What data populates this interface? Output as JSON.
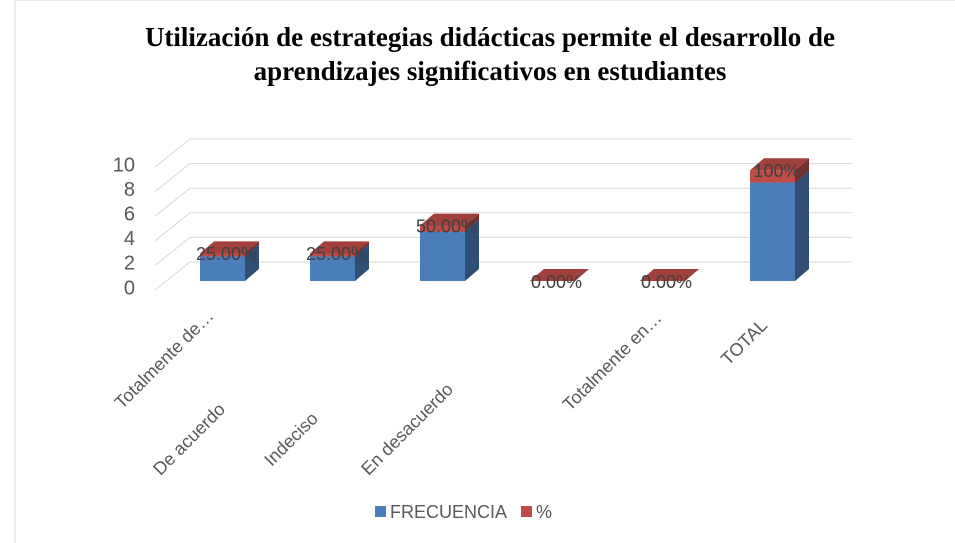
{
  "chart_data": {
    "type": "bar3d",
    "title": [
      "Utilización de estrategias didácticas permite el desarrollo de",
      "aprendizajes significativos en estudiantes"
    ],
    "categories": [
      "Totalmente de…",
      "De acuerdo",
      "Indeciso",
      "En desacuerdo",
      "Totalmente en…",
      "TOTAL"
    ],
    "series": [
      {
        "name": "FRECUENCIA",
        "color": "#4a7ebb",
        "values": [
          2,
          2,
          4,
          0,
          0,
          8
        ]
      },
      {
        "name": "%",
        "color": "#be4b48",
        "values": [
          0.25,
          0.25,
          0.5,
          0,
          0,
          1
        ],
        "value_labels": [
          "25.00%",
          "25.00%",
          "50.00%",
          "0.00%",
          "0.00%",
          "100%"
        ]
      }
    ],
    "stacked": true,
    "ylim": [
      0,
      10
    ],
    "yticks": [
      0,
      2,
      4,
      6,
      8,
      10
    ],
    "grid": true,
    "legend": "bottom"
  }
}
